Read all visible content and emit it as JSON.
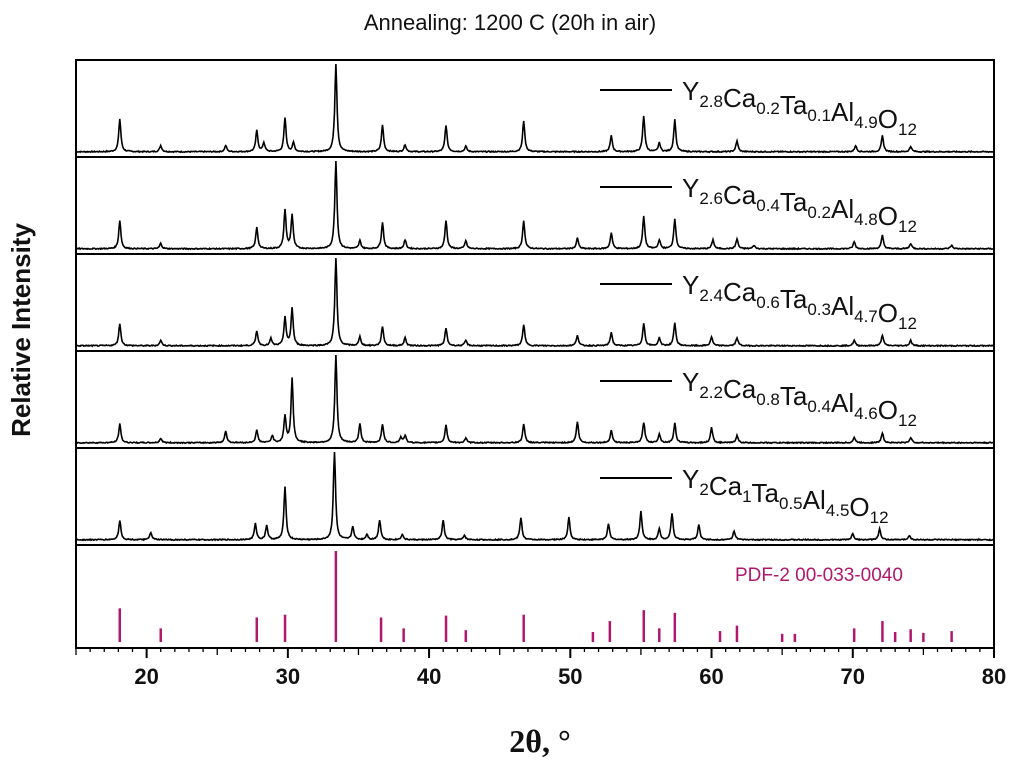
{
  "chart_data": {
    "type": "line",
    "title": "Annealing: 1200 C (20h in air)",
    "ylabel": "Relative Intensity",
    "xlabel": "2θ, °",
    "xlim": [
      15,
      80
    ],
    "x_ticks": [
      "20",
      "30",
      "40",
      "50",
      "60",
      "70",
      "80"
    ],
    "x_tick_values": [
      20,
      30,
      40,
      50,
      60,
      70,
      80
    ],
    "colors": {
      "pattern": "#000000",
      "reference": "#b0186e"
    },
    "series": [
      {
        "name": "Y2.8Ca0.2Ta0.1Al4.9O12",
        "label_parts": [
          [
            "Y",
            "2.8"
          ],
          [
            "Ca",
            "0.2"
          ],
          [
            "Ta",
            "0.1"
          ],
          [
            "Al",
            "4.9"
          ],
          [
            "O",
            "12"
          ]
        ],
        "peaks": [
          [
            18.1,
            0.37
          ],
          [
            21.0,
            0.07
          ],
          [
            25.6,
            0.07
          ],
          [
            27.8,
            0.24
          ],
          [
            28.3,
            0.1
          ],
          [
            29.8,
            0.38
          ],
          [
            30.4,
            0.1
          ],
          [
            33.4,
            1.0
          ],
          [
            36.7,
            0.3
          ],
          [
            38.3,
            0.08
          ],
          [
            41.2,
            0.3
          ],
          [
            42.6,
            0.06
          ],
          [
            46.7,
            0.35
          ],
          [
            52.9,
            0.18
          ],
          [
            55.2,
            0.4
          ],
          [
            56.3,
            0.1
          ],
          [
            57.4,
            0.36
          ],
          [
            61.8,
            0.12
          ],
          [
            70.2,
            0.07
          ],
          [
            72.1,
            0.18
          ],
          [
            74.1,
            0.06
          ]
        ]
      },
      {
        "name": "Y2.6Ca0.4Ta0.2Al4.8O12",
        "label_parts": [
          [
            "Y",
            "2.6"
          ],
          [
            "Ca",
            "0.4"
          ],
          [
            "Ta",
            "0.2"
          ],
          [
            "Al",
            "4.8"
          ],
          [
            "O",
            "12"
          ]
        ],
        "peaks": [
          [
            18.1,
            0.32
          ],
          [
            21.0,
            0.06
          ],
          [
            27.8,
            0.24
          ],
          [
            29.8,
            0.44
          ],
          [
            30.3,
            0.38
          ],
          [
            33.4,
            1.0
          ],
          [
            35.1,
            0.09
          ],
          [
            36.7,
            0.3
          ],
          [
            38.3,
            0.1
          ],
          [
            41.2,
            0.32
          ],
          [
            42.6,
            0.09
          ],
          [
            46.7,
            0.32
          ],
          [
            50.5,
            0.12
          ],
          [
            52.9,
            0.18
          ],
          [
            55.2,
            0.36
          ],
          [
            56.3,
            0.1
          ],
          [
            57.4,
            0.34
          ],
          [
            60.1,
            0.1
          ],
          [
            61.8,
            0.11
          ],
          [
            63.0,
            0.04
          ],
          [
            70.1,
            0.08
          ],
          [
            72.1,
            0.15
          ],
          [
            74.1,
            0.06
          ],
          [
            77.0,
            0.04
          ]
        ]
      },
      {
        "name": "Y2.4Ca0.6Ta0.3Al4.7O12",
        "label_parts": [
          [
            "Y",
            "2.4"
          ],
          [
            "Ca",
            "0.6"
          ],
          [
            "Ta",
            "0.3"
          ],
          [
            "Al",
            "4.7"
          ],
          [
            "O",
            "12"
          ]
        ],
        "peaks": [
          [
            18.1,
            0.25
          ],
          [
            21.0,
            0.06
          ],
          [
            27.8,
            0.17
          ],
          [
            28.8,
            0.08
          ],
          [
            29.8,
            0.32
          ],
          [
            30.3,
            0.42
          ],
          [
            33.4,
            1.0
          ],
          [
            35.1,
            0.1
          ],
          [
            36.7,
            0.22
          ],
          [
            38.3,
            0.09
          ],
          [
            41.2,
            0.2
          ],
          [
            42.6,
            0.06
          ],
          [
            46.7,
            0.24
          ],
          [
            50.5,
            0.12
          ],
          [
            52.9,
            0.15
          ],
          [
            55.2,
            0.25
          ],
          [
            56.3,
            0.09
          ],
          [
            57.4,
            0.26
          ],
          [
            60.0,
            0.1
          ],
          [
            61.8,
            0.09
          ],
          [
            70.1,
            0.06
          ],
          [
            72.1,
            0.12
          ],
          [
            74.1,
            0.06
          ]
        ]
      },
      {
        "name": "Y2.2Ca0.8Ta0.4Al4.6O12",
        "label_parts": [
          [
            "Y",
            "2.2"
          ],
          [
            "Ca",
            "0.8"
          ],
          [
            "Ta",
            "0.4"
          ],
          [
            "Al",
            "4.6"
          ],
          [
            "O",
            "12"
          ]
        ],
        "peaks": [
          [
            18.1,
            0.21
          ],
          [
            21.0,
            0.05
          ],
          [
            25.6,
            0.13
          ],
          [
            27.8,
            0.14
          ],
          [
            28.9,
            0.08
          ],
          [
            29.8,
            0.3
          ],
          [
            30.3,
            0.72
          ],
          [
            33.4,
            1.0
          ],
          [
            35.1,
            0.21
          ],
          [
            36.7,
            0.21
          ],
          [
            38.0,
            0.06
          ],
          [
            38.3,
            0.08
          ],
          [
            41.2,
            0.2
          ],
          [
            42.6,
            0.05
          ],
          [
            46.7,
            0.21
          ],
          [
            50.5,
            0.24
          ],
          [
            52.9,
            0.14
          ],
          [
            55.2,
            0.23
          ],
          [
            56.3,
            0.1
          ],
          [
            57.4,
            0.22
          ],
          [
            60.0,
            0.17
          ],
          [
            61.8,
            0.08
          ],
          [
            70.1,
            0.06
          ],
          [
            72.1,
            0.11
          ],
          [
            74.1,
            0.06
          ]
        ]
      },
      {
        "name": "Y2Ca1Ta0.5Al4.5O12",
        "label_parts": [
          [
            "Y",
            "2"
          ],
          [
            "Ca",
            "1"
          ],
          [
            "Ta",
            "0.5"
          ],
          [
            "Al",
            "4.5"
          ],
          [
            "O",
            "12"
          ]
        ],
        "peaks": [
          [
            18.1,
            0.22
          ],
          [
            20.3,
            0.08
          ],
          [
            27.7,
            0.18
          ],
          [
            28.5,
            0.16
          ],
          [
            29.8,
            0.6
          ],
          [
            33.3,
            1.0
          ],
          [
            34.6,
            0.15
          ],
          [
            35.6,
            0.06
          ],
          [
            36.5,
            0.22
          ],
          [
            38.1,
            0.06
          ],
          [
            41.0,
            0.22
          ],
          [
            42.5,
            0.05
          ],
          [
            46.5,
            0.25
          ],
          [
            49.9,
            0.25
          ],
          [
            52.7,
            0.18
          ],
          [
            55.0,
            0.32
          ],
          [
            56.3,
            0.12
          ],
          [
            57.2,
            0.3
          ],
          [
            59.1,
            0.17
          ],
          [
            61.6,
            0.1
          ],
          [
            70.0,
            0.07
          ],
          [
            71.9,
            0.12
          ],
          [
            74.0,
            0.05
          ]
        ]
      }
    ],
    "reference": {
      "label": "PDF-2 00-033-0040",
      "lines": [
        [
          18.1,
          0.37
        ],
        [
          21.0,
          0.15
        ],
        [
          27.8,
          0.27
        ],
        [
          29.8,
          0.3
        ],
        [
          33.4,
          1.0
        ],
        [
          36.6,
          0.27
        ],
        [
          38.2,
          0.15
        ],
        [
          41.2,
          0.29
        ],
        [
          42.6,
          0.13
        ],
        [
          46.7,
          0.3
        ],
        [
          51.6,
          0.11
        ],
        [
          52.8,
          0.23
        ],
        [
          55.2,
          0.35
        ],
        [
          56.3,
          0.15
        ],
        [
          57.4,
          0.32
        ],
        [
          60.6,
          0.12
        ],
        [
          61.8,
          0.18
        ],
        [
          65.0,
          0.09
        ],
        [
          65.9,
          0.09
        ],
        [
          70.1,
          0.15
        ],
        [
          72.1,
          0.23
        ],
        [
          73.0,
          0.11
        ],
        [
          74.1,
          0.14
        ],
        [
          75.0,
          0.1
        ],
        [
          77.0,
          0.12
        ]
      ]
    }
  }
}
